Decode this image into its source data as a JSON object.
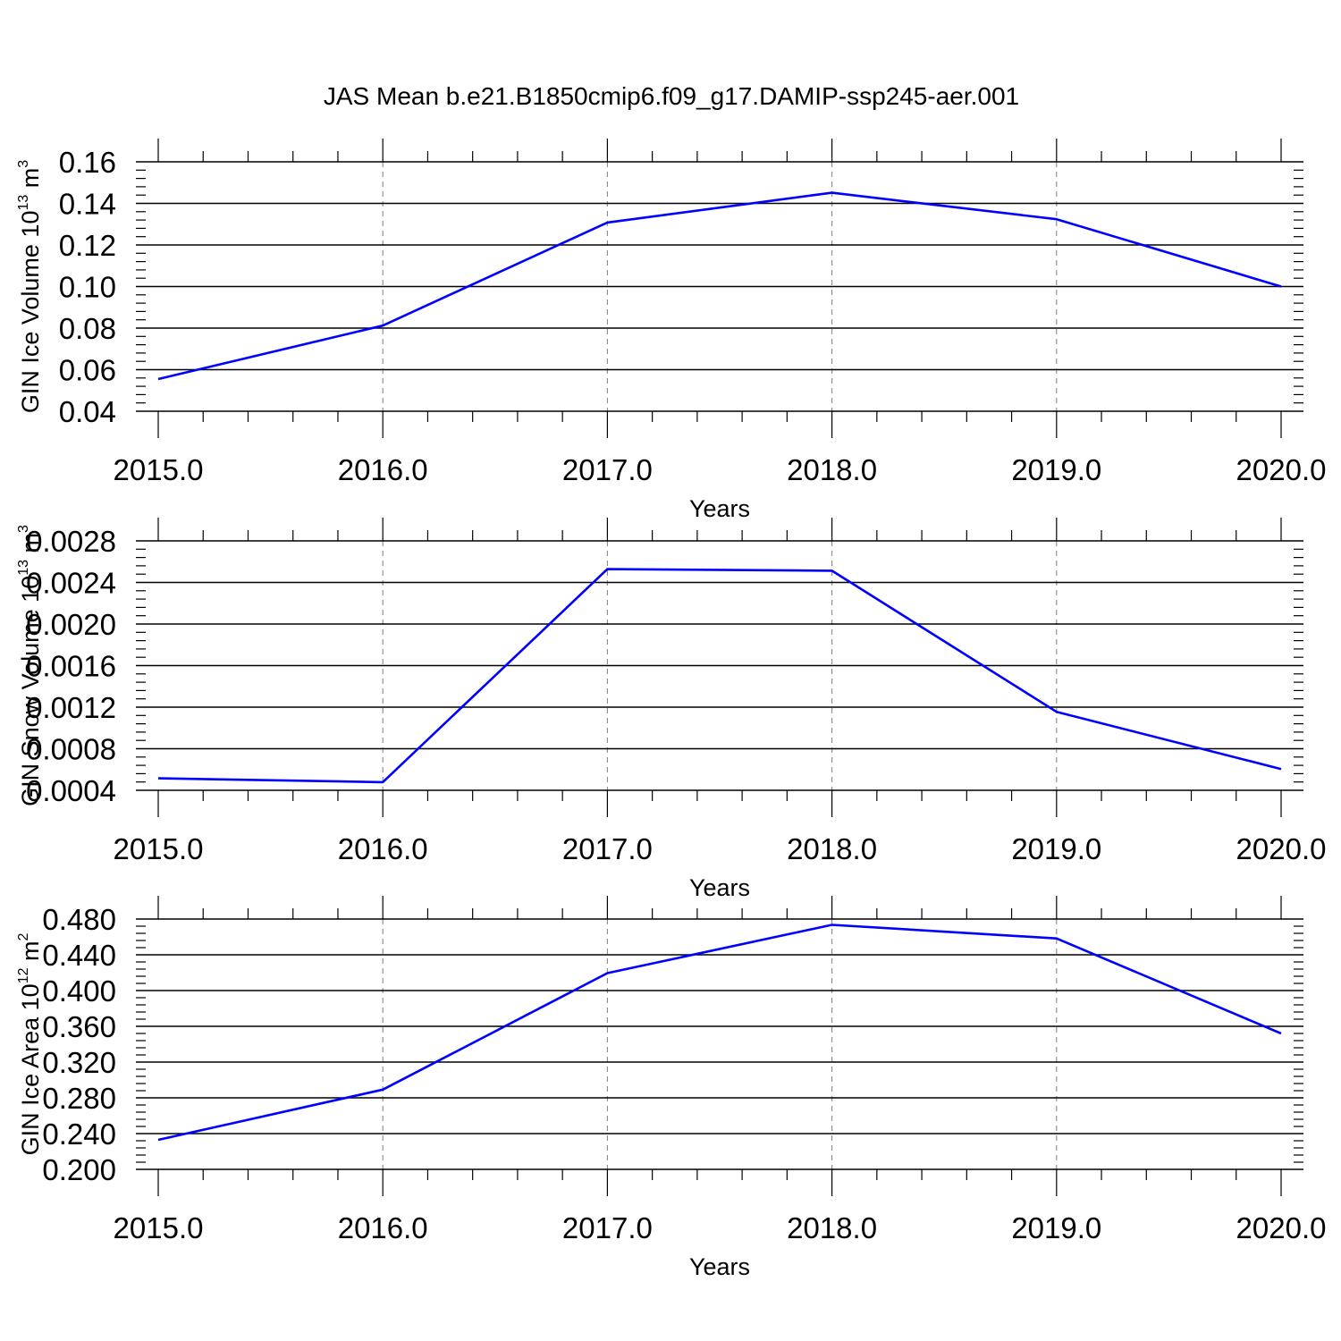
{
  "title": "JAS Mean b.e21.B1850cmip6.f09_g17.DAMIP-ssp245-aer.001",
  "colors": {
    "series": "#0000ff",
    "axes": "#000000",
    "grid": "#888888"
  },
  "chart_data": [
    {
      "type": "line",
      "xlabel": "Years",
      "ylabel_main": "GIN Ice Volume 10",
      "ylabel_exp": "13",
      "ylabel_unit": " m",
      "ylabel_unit_exp": "3",
      "x": [
        2015,
        2016,
        2017,
        2018,
        2019,
        2020
      ],
      "series": [
        {
          "values": [
            0.0555,
            0.0812,
            0.1308,
            0.1451,
            0.1324,
            0.1
          ]
        }
      ],
      "xlim": [
        2015,
        2020.1
      ],
      "ylim": [
        0.04,
        0.16
      ],
      "x_tick_labels": [
        "2015.0",
        "2016.0",
        "2017.0",
        "2018.0",
        "2019.0",
        "2020.0"
      ],
      "y_ticks": [
        0.04,
        0.06,
        0.08,
        0.1,
        0.12,
        0.14,
        0.16
      ],
      "y_tick_labels": [
        "0.04",
        "0.06",
        "0.08",
        "0.10",
        "0.12",
        "0.14",
        "0.16"
      ],
      "grid": "vertical dashed at major x ticks"
    },
    {
      "type": "line",
      "xlabel": "Years",
      "ylabel_main": "GIN Snow Volume 10",
      "ylabel_exp": "13",
      "ylabel_unit": " m",
      "ylabel_unit_exp": "3",
      "x": [
        2015,
        2016,
        2017,
        2018,
        2019,
        2020
      ],
      "series": [
        {
          "values": [
            0.000515,
            0.000478,
            0.002528,
            0.002513,
            0.001155,
            0.000605
          ]
        }
      ],
      "xlim": [
        2015,
        2020.1
      ],
      "ylim": [
        0.0004,
        0.0028
      ],
      "x_tick_labels": [
        "2015.0",
        "2016.0",
        "2017.0",
        "2018.0",
        "2019.0",
        "2020.0"
      ],
      "y_ticks": [
        0.0004,
        0.0008,
        0.0012,
        0.0016,
        0.002,
        0.0024,
        0.0028
      ],
      "y_tick_labels": [
        "0.0004",
        "0.0008",
        "0.0012",
        "0.0016",
        "0.0020",
        "0.0024",
        "0.0028"
      ],
      "grid": "vertical dashed at major x ticks"
    },
    {
      "type": "line",
      "xlabel": "Years",
      "ylabel_main": "GIN Ice Area 10",
      "ylabel_exp": "12",
      "ylabel_unit": " m",
      "ylabel_unit_exp": "2",
      "x": [
        2015,
        2016,
        2017,
        2018,
        2019,
        2020
      ],
      "series": [
        {
          "values": [
            0.233,
            0.2892,
            0.4195,
            0.4735,
            0.4583,
            0.352
          ]
        }
      ],
      "xlim": [
        2015,
        2020.1
      ],
      "ylim": [
        0.2,
        0.48
      ],
      "x_tick_labels": [
        "2015.0",
        "2016.0",
        "2017.0",
        "2018.0",
        "2019.0",
        "2020.0"
      ],
      "y_ticks": [
        0.2,
        0.24,
        0.28,
        0.32,
        0.36,
        0.4,
        0.44,
        0.48
      ],
      "y_tick_labels": [
        "0.200",
        "0.240",
        "0.280",
        "0.320",
        "0.360",
        "0.400",
        "0.440",
        "0.480"
      ],
      "grid": "vertical dashed at major x ticks"
    }
  ]
}
